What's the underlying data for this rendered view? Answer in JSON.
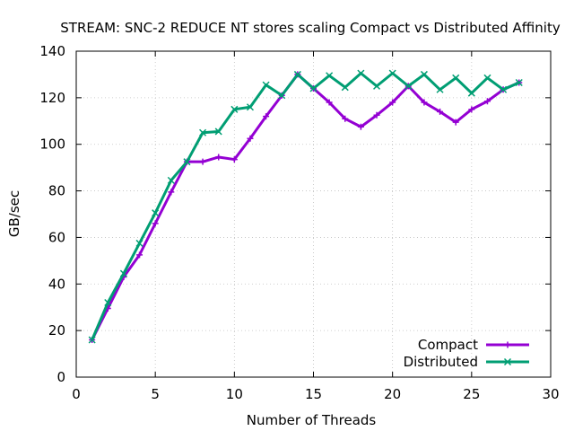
{
  "chart_data": {
    "type": "line",
    "title": "STREAM: SNC-2 REDUCE NT stores scaling Compact vs Distributed Affinity",
    "xlabel": "Number of Threads",
    "ylabel": "GB/sec",
    "xlim": [
      0,
      30
    ],
    "ylim": [
      0,
      140
    ],
    "xticks": [
      0,
      5,
      10,
      15,
      20,
      25,
      30
    ],
    "yticks": [
      0,
      20,
      40,
      60,
      80,
      100,
      120,
      140
    ],
    "grid": true,
    "legend_position": "bottom-right",
    "x": [
      1,
      2,
      3,
      4,
      5,
      6,
      7,
      8,
      9,
      10,
      11,
      12,
      13,
      14,
      15,
      16,
      17,
      18,
      19,
      20,
      21,
      22,
      23,
      24,
      25,
      26,
      27,
      28
    ],
    "series": [
      {
        "name": "Compact",
        "color": "#9400d3",
        "marker": "plus",
        "values": [
          16,
          29.5,
          43,
          52.5,
          66,
          79.5,
          92.5,
          92.5,
          94.5,
          93.5,
          102.5,
          112,
          121,
          130,
          124,
          118,
          111,
          107.5,
          112.5,
          118,
          125,
          118,
          114,
          109.5,
          115,
          118.5,
          123.5,
          126.5
        ]
      },
      {
        "name": "Distributed",
        "color": "#009e73",
        "marker": "cross",
        "values": [
          16,
          32,
          44.5,
          57.5,
          70.5,
          84.5,
          92.5,
          105,
          105.5,
          115,
          116,
          125.5,
          121,
          130,
          124,
          129.5,
          124.5,
          130.5,
          125,
          130.5,
          125,
          130,
          123.5,
          128.5,
          122,
          128.5,
          123.5,
          126.5
        ]
      }
    ]
  }
}
